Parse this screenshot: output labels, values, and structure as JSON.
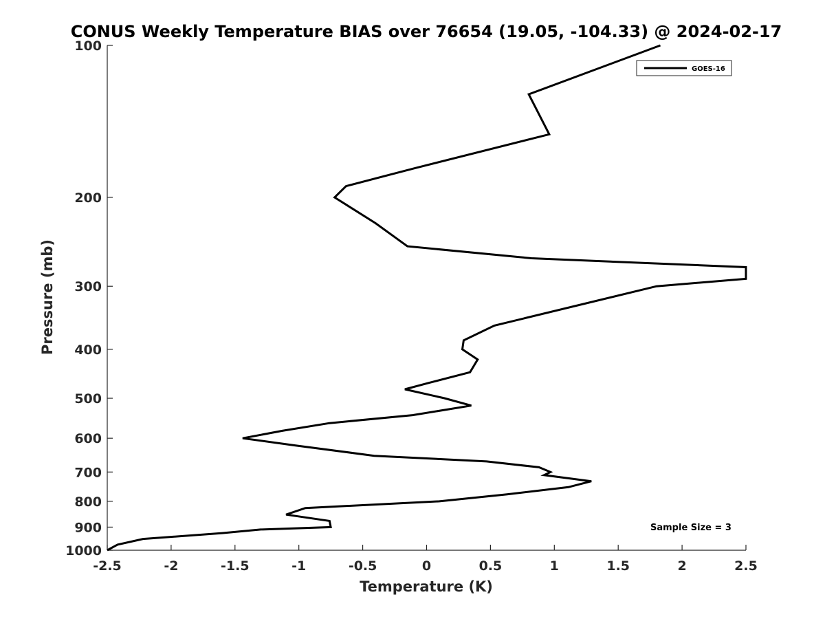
{
  "chart_data": {
    "type": "line",
    "title": "CONUS Weekly Temperature BIAS over 76654 (19.05, -104.33) @ 2024-02-17",
    "xlabel": "Temperature (K)",
    "ylabel": "Pressure (mb)",
    "xlim": [
      -2.5,
      2.5
    ],
    "ylim": [
      100,
      1000
    ],
    "yscale": "log",
    "yreversed": true,
    "grid": false,
    "legend_position": "top-right",
    "x_ticks": [
      {
        "value": -2.5,
        "label": "-2.5"
      },
      {
        "value": -2,
        "label": "-2"
      },
      {
        "value": -1.5,
        "label": "-1.5"
      },
      {
        "value": -1,
        "label": "-1"
      },
      {
        "value": -0.5,
        "label": "-0.5"
      },
      {
        "value": 0,
        "label": "0"
      },
      {
        "value": 0.5,
        "label": "0.5"
      },
      {
        "value": 1,
        "label": "1"
      },
      {
        "value": 1.5,
        "label": "1.5"
      },
      {
        "value": 2,
        "label": "2"
      },
      {
        "value": 2.5,
        "label": "2.5"
      }
    ],
    "y_ticks": [
      {
        "value": 100,
        "label": "100"
      },
      {
        "value": 200,
        "label": "200"
      },
      {
        "value": 300,
        "label": "300"
      },
      {
        "value": 400,
        "label": "400"
      },
      {
        "value": 500,
        "label": "500"
      },
      {
        "value": 600,
        "label": "600"
      },
      {
        "value": 700,
        "label": "700"
      },
      {
        "value": 800,
        "label": "800"
      },
      {
        "value": 900,
        "label": "900"
      },
      {
        "value": 1000,
        "label": "1000"
      }
    ],
    "series": [
      {
        "name": "GOES-16",
        "color": "#000000",
        "points": [
          {
            "t": 1.83,
            "p": 100
          },
          {
            "t": 0.8,
            "p": 125
          },
          {
            "t": 0.96,
            "p": 150
          },
          {
            "t": -0.09,
            "p": 175
          },
          {
            "t": -0.63,
            "p": 190
          },
          {
            "t": -0.72,
            "p": 200
          },
          {
            "t": -0.4,
            "p": 225
          },
          {
            "t": -0.15,
            "p": 250
          },
          {
            "t": 0.82,
            "p": 264
          },
          {
            "t": 2.5,
            "p": 275
          },
          {
            "t": 2.5,
            "p": 290
          },
          {
            "t": 1.8,
            "p": 300
          },
          {
            "t": 0.53,
            "p": 359
          },
          {
            "t": 0.29,
            "p": 384
          },
          {
            "t": 0.28,
            "p": 400
          },
          {
            "t": 0.4,
            "p": 419
          },
          {
            "t": 0.34,
            "p": 444
          },
          {
            "t": 0.02,
            "p": 466
          },
          {
            "t": -0.17,
            "p": 480
          },
          {
            "t": 0.14,
            "p": 500
          },
          {
            "t": 0.35,
            "p": 517
          },
          {
            "t": -0.11,
            "p": 540
          },
          {
            "t": -0.76,
            "p": 560
          },
          {
            "t": -1.13,
            "p": 580
          },
          {
            "t": -1.44,
            "p": 600
          },
          {
            "t": -1.03,
            "p": 620
          },
          {
            "t": -0.41,
            "p": 650
          },
          {
            "t": 0.47,
            "p": 667
          },
          {
            "t": 0.88,
            "p": 685
          },
          {
            "t": 0.97,
            "p": 700
          },
          {
            "t": 0.92,
            "p": 710
          },
          {
            "t": 1.29,
            "p": 730
          },
          {
            "t": 1.11,
            "p": 750
          },
          {
            "t": 0.63,
            "p": 775
          },
          {
            "t": 0.1,
            "p": 800
          },
          {
            "t": -0.95,
            "p": 825
          },
          {
            "t": -1.1,
            "p": 850
          },
          {
            "t": -0.76,
            "p": 875
          },
          {
            "t": -0.75,
            "p": 900
          },
          {
            "t": -1.3,
            "p": 910
          },
          {
            "t": -1.6,
            "p": 925
          },
          {
            "t": -2.22,
            "p": 950
          },
          {
            "t": -2.42,
            "p": 975
          },
          {
            "t": -2.5,
            "p": 1000
          }
        ]
      }
    ],
    "annotations": [
      {
        "text": "Sample Size = 3"
      }
    ]
  }
}
